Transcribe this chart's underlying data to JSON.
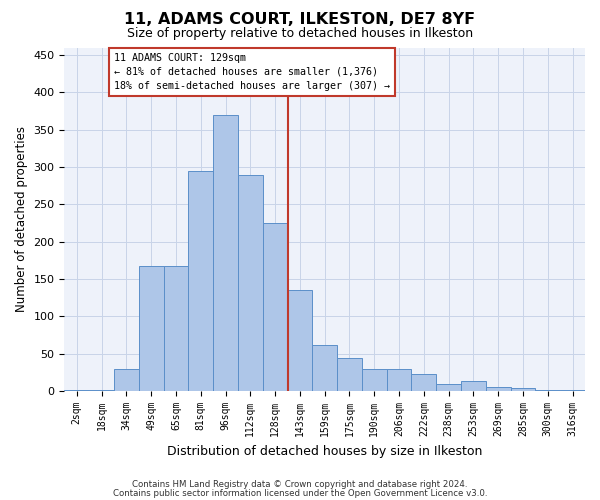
{
  "title1": "11, ADAMS COURT, ILKESTON, DE7 8YF",
  "title2": "Size of property relative to detached houses in Ilkeston",
  "xlabel": "Distribution of detached houses by size in Ilkeston",
  "ylabel": "Number of detached properties",
  "categories": [
    "2sqm",
    "18sqm",
    "34sqm",
    "49sqm",
    "65sqm",
    "81sqm",
    "96sqm",
    "112sqm",
    "128sqm",
    "143sqm",
    "159sqm",
    "175sqm",
    "190sqm",
    "206sqm",
    "222sqm",
    "238sqm",
    "253sqm",
    "269sqm",
    "285sqm",
    "300sqm",
    "316sqm"
  ],
  "values": [
    2,
    2,
    30,
    168,
    168,
    295,
    370,
    290,
    225,
    135,
    62,
    44,
    30,
    30,
    23,
    10,
    13,
    5,
    4,
    2,
    1
  ],
  "bar_color": "#aec6e8",
  "bar_edge_color": "#5b8fc9",
  "ref_line_index": 8,
  "ref_line_color": "#c0392b",
  "annotation_title": "11 ADAMS COURT: 129sqm",
  "annotation_line1": "← 81% of detached houses are smaller (1,376)",
  "annotation_line2": "18% of semi-detached houses are larger (307) →",
  "annotation_box_color": "#c0392b",
  "ylim": [
    0,
    460
  ],
  "yticks": [
    0,
    50,
    100,
    150,
    200,
    250,
    300,
    350,
    400,
    450
  ],
  "footer1": "Contains HM Land Registry data © Crown copyright and database right 2024.",
  "footer2": "Contains public sector information licensed under the Open Government Licence v3.0.",
  "bg_color": "#eef2fa",
  "grid_color": "#c8d4e8"
}
